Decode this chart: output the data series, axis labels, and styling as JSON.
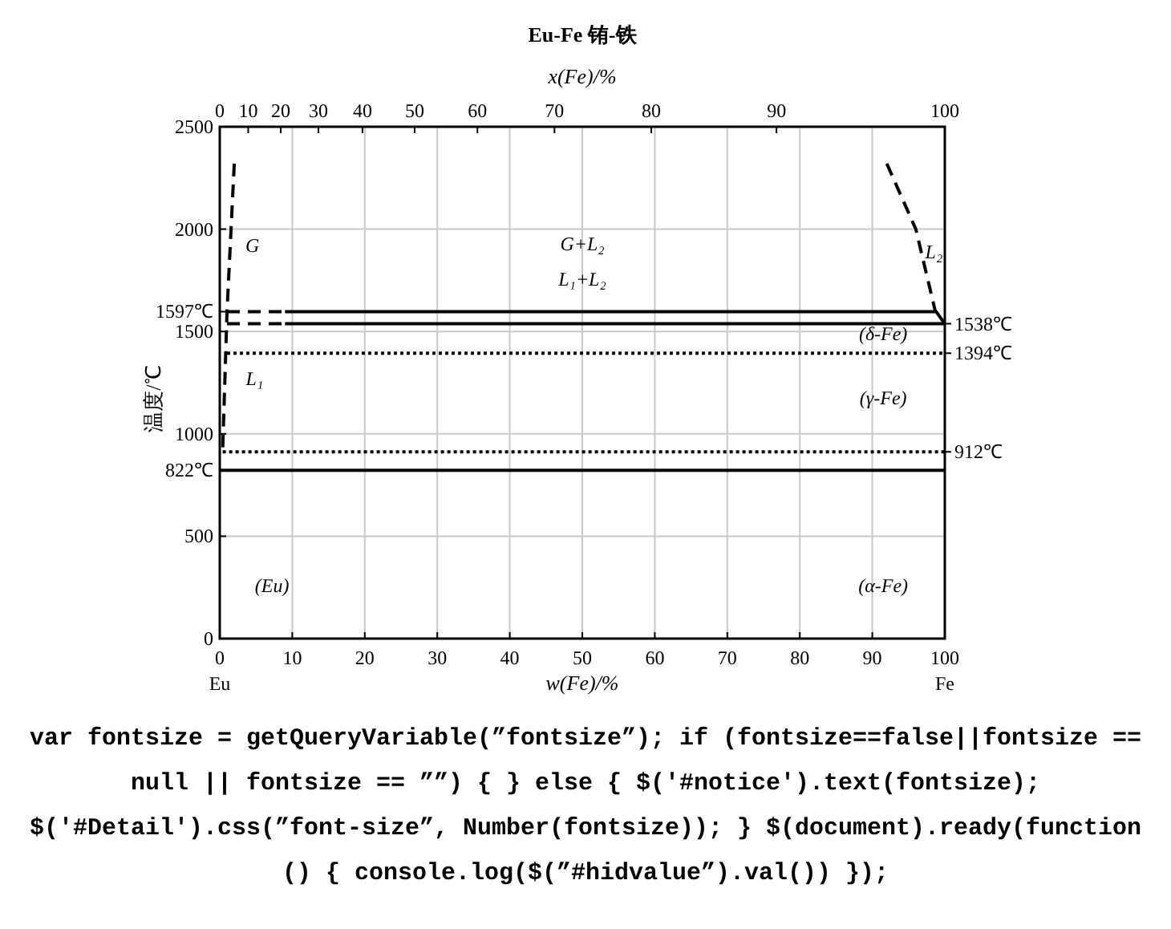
{
  "chart_data": {
    "type": "line",
    "title": "Eu-Fe  铕-铁",
    "xlabel": "w(Fe)/%",
    "x2label": "x(Fe)/%",
    "ylabel": "温度/℃",
    "xlim": [
      0,
      100
    ],
    "xticks": [
      0,
      10,
      20,
      30,
      40,
      50,
      60,
      70,
      80,
      90,
      100
    ],
    "y2lim": [
      0,
      2500
    ],
    "y2ticks": [
      {
        "value": 912,
        "label": "912℃"
      },
      {
        "value": 1394,
        "label": "1394℃"
      },
      {
        "value": 1538,
        "label": "1538℃"
      }
    ],
    "ylim": [
      0,
      2500
    ],
    "yticks": [
      0,
      500,
      {
        "value": 822,
        "label": "822℃"
      },
      1000,
      1500,
      {
        "value": 1597,
        "label": "1597℃"
      },
      2000,
      2500
    ],
    "grid": true,
    "series": [
      {
        "color": "#000000",
        "line_style": "dashed",
        "x": [
          1,
          9
        ],
        "values": [
          1597,
          1597
        ]
      },
      {
        "color": "#000000",
        "line_style": "solid",
        "x": [
          9,
          98.8,
          100
        ],
        "values": [
          1597,
          1597,
          1538
        ]
      },
      {
        "color": "#000000",
        "line_style": "dashed",
        "x": [
          1,
          9
        ],
        "values": [
          1538,
          1538
        ]
      },
      {
        "color": "#000000",
        "line_style": "solid",
        "x": [
          9,
          100
        ],
        "values": [
          1538,
          1538
        ]
      },
      {
        "color": "#000000",
        "line_style": "dotted",
        "x": [
          1,
          100
        ],
        "values": [
          1394,
          1394
        ]
      },
      {
        "color": "#000000",
        "line_style": "dotted",
        "x": [
          0.4,
          100
        ],
        "values": [
          912,
          912
        ]
      },
      {
        "color": "#000000",
        "line_style": "solid",
        "x": [
          0,
          100
        ],
        "values": [
          822,
          822
        ]
      },
      {
        "color": "#000000",
        "line_style": "dashed",
        "x": [
          2,
          1,
          0.4
        ],
        "values": [
          2320,
          1597,
          920
        ]
      },
      {
        "color": "#000000",
        "line_style": "dashed",
        "x": [
          92,
          96,
          98.7
        ],
        "values": [
          2320,
          2000,
          1597
        ]
      }
    ],
    "annotations": [
      "G",
      "G+L₂",
      "L₁+L₂",
      "L₁",
      "L₂",
      "(δ-Fe)",
      "(γ-Fe)",
      "(α-Fe)",
      "(Eu)",
      "0",
      "10",
      "20",
      "30",
      "40",
      "50",
      "60",
      "70",
      "80",
      "90",
      "100",
      "Eu",
      "Fe",
      "var fontsize = getQueryVariable(”fontsize”); if (fontsize==false||fontsize == null || fontsize == ””) { } else { $('#notice').text(fontsize); $('#Detail').css(”font-size”, Number(fontsize)); } $(document).ready(function () { console.log($(”#hidvalue”).val()) });"
    ]
  }
}
